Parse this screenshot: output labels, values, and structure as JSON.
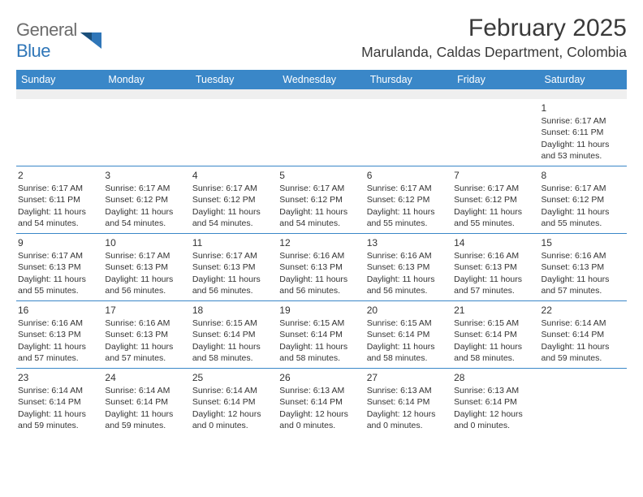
{
  "logo": {
    "text1": "General",
    "text2": "Blue"
  },
  "title": "February 2025",
  "location": "Marulanda, Caldas Department, Colombia",
  "colors": {
    "header_bg": "#3a87c8",
    "header_text": "#ffffff",
    "spacer_bg": "#efefef",
    "rule": "#3a87c8",
    "body_text": "#333333",
    "logo_gray": "#6c6c6c",
    "logo_blue": "#2f76b8",
    "title_color": "#3a3a3a"
  },
  "fonts": {
    "title_size": 30,
    "location_size": 17.5,
    "dow_size": 12.5,
    "daynum_size": 12,
    "body_size": 10.5
  },
  "dow": [
    "Sunday",
    "Monday",
    "Tuesday",
    "Wednesday",
    "Thursday",
    "Friday",
    "Saturday"
  ],
  "weeks": [
    [
      null,
      null,
      null,
      null,
      null,
      null,
      {
        "n": "1",
        "sr": "6:17 AM",
        "ss": "6:11 PM",
        "dh": "11",
        "dm": "53"
      }
    ],
    [
      {
        "n": "2",
        "sr": "6:17 AM",
        "ss": "6:11 PM",
        "dh": "11",
        "dm": "54"
      },
      {
        "n": "3",
        "sr": "6:17 AM",
        "ss": "6:12 PM",
        "dh": "11",
        "dm": "54"
      },
      {
        "n": "4",
        "sr": "6:17 AM",
        "ss": "6:12 PM",
        "dh": "11",
        "dm": "54"
      },
      {
        "n": "5",
        "sr": "6:17 AM",
        "ss": "6:12 PM",
        "dh": "11",
        "dm": "54"
      },
      {
        "n": "6",
        "sr": "6:17 AM",
        "ss": "6:12 PM",
        "dh": "11",
        "dm": "55"
      },
      {
        "n": "7",
        "sr": "6:17 AM",
        "ss": "6:12 PM",
        "dh": "11",
        "dm": "55"
      },
      {
        "n": "8",
        "sr": "6:17 AM",
        "ss": "6:12 PM",
        "dh": "11",
        "dm": "55"
      }
    ],
    [
      {
        "n": "9",
        "sr": "6:17 AM",
        "ss": "6:13 PM",
        "dh": "11",
        "dm": "55"
      },
      {
        "n": "10",
        "sr": "6:17 AM",
        "ss": "6:13 PM",
        "dh": "11",
        "dm": "56"
      },
      {
        "n": "11",
        "sr": "6:17 AM",
        "ss": "6:13 PM",
        "dh": "11",
        "dm": "56"
      },
      {
        "n": "12",
        "sr": "6:16 AM",
        "ss": "6:13 PM",
        "dh": "11",
        "dm": "56"
      },
      {
        "n": "13",
        "sr": "6:16 AM",
        "ss": "6:13 PM",
        "dh": "11",
        "dm": "56"
      },
      {
        "n": "14",
        "sr": "6:16 AM",
        "ss": "6:13 PM",
        "dh": "11",
        "dm": "57"
      },
      {
        "n": "15",
        "sr": "6:16 AM",
        "ss": "6:13 PM",
        "dh": "11",
        "dm": "57"
      }
    ],
    [
      {
        "n": "16",
        "sr": "6:16 AM",
        "ss": "6:13 PM",
        "dh": "11",
        "dm": "57"
      },
      {
        "n": "17",
        "sr": "6:16 AM",
        "ss": "6:13 PM",
        "dh": "11",
        "dm": "57"
      },
      {
        "n": "18",
        "sr": "6:15 AM",
        "ss": "6:14 PM",
        "dh": "11",
        "dm": "58"
      },
      {
        "n": "19",
        "sr": "6:15 AM",
        "ss": "6:14 PM",
        "dh": "11",
        "dm": "58"
      },
      {
        "n": "20",
        "sr": "6:15 AM",
        "ss": "6:14 PM",
        "dh": "11",
        "dm": "58"
      },
      {
        "n": "21",
        "sr": "6:15 AM",
        "ss": "6:14 PM",
        "dh": "11",
        "dm": "58"
      },
      {
        "n": "22",
        "sr": "6:14 AM",
        "ss": "6:14 PM",
        "dh": "11",
        "dm": "59"
      }
    ],
    [
      {
        "n": "23",
        "sr": "6:14 AM",
        "ss": "6:14 PM",
        "dh": "11",
        "dm": "59"
      },
      {
        "n": "24",
        "sr": "6:14 AM",
        "ss": "6:14 PM",
        "dh": "11",
        "dm": "59"
      },
      {
        "n": "25",
        "sr": "6:14 AM",
        "ss": "6:14 PM",
        "dh": "12",
        "dm": "0"
      },
      {
        "n": "26",
        "sr": "6:13 AM",
        "ss": "6:14 PM",
        "dh": "12",
        "dm": "0"
      },
      {
        "n": "27",
        "sr": "6:13 AM",
        "ss": "6:14 PM",
        "dh": "12",
        "dm": "0"
      },
      {
        "n": "28",
        "sr": "6:13 AM",
        "ss": "6:14 PM",
        "dh": "12",
        "dm": "0"
      },
      null
    ]
  ],
  "labels": {
    "sunrise": "Sunrise: ",
    "sunset": "Sunset: ",
    "daylight1": "Daylight: ",
    "daylight2": " hours and ",
    "daylight3": " minutes."
  }
}
